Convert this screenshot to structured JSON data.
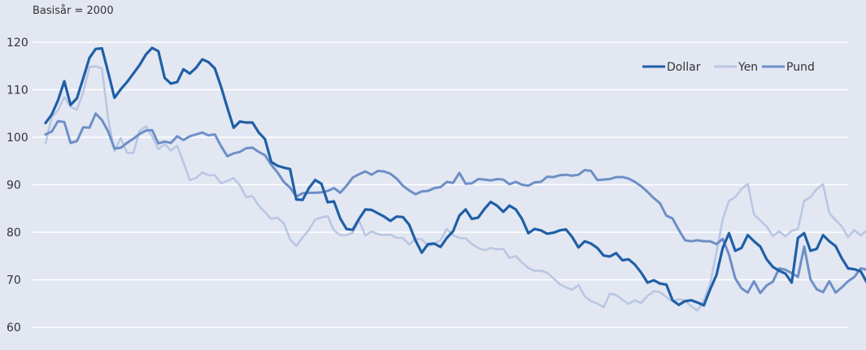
{
  "chart_data": {
    "type": "line",
    "note": "Basisår = 2000",
    "title": "",
    "xlabel": "",
    "ylabel": "",
    "ylim": [
      60,
      120
    ],
    "yticks": [
      60,
      70,
      80,
      90,
      100,
      110,
      120
    ],
    "grid": true,
    "legend_position": "top-right",
    "x_count": 129,
    "colors": {
      "background": "#e3e7f2",
      "grid": "#ffffff",
      "Dollar": "#1f5fa6",
      "Yen": "#b9c7e2",
      "Pund": "#6d8fc6"
    },
    "series": [
      {
        "name": "Dollar",
        "values": [
          103,
          104.8,
          107.8,
          111.8,
          106.8,
          108.2,
          112.4,
          116.7,
          118.6,
          118.7,
          113.6,
          108.3,
          110.1,
          111.6,
          113.4,
          115.2,
          117.4,
          118.8,
          118.1,
          112.5,
          111.3,
          111.6,
          114.3,
          113.4,
          114.6,
          116.4,
          115.8,
          114.5,
          110.6,
          106.2,
          102,
          103.3,
          103.1,
          103.1,
          101,
          99.6,
          94.8,
          94,
          93.6,
          93.3,
          86.9,
          86.8,
          89.3,
          91,
          90.2,
          86.3,
          86.5,
          82.9,
          80.7,
          80.5,
          82.8,
          84.8,
          84.7,
          84,
          83.3,
          82.4,
          83.3,
          83.2,
          81.6,
          78.3,
          75.7,
          77.5,
          77.6,
          76.9,
          78.8,
          80.2,
          83.5,
          84.8,
          82.8,
          83.1,
          84.9,
          86.4,
          85.6,
          84.3,
          85.6,
          84.8,
          82.8,
          79.8,
          80.7,
          80.4,
          79.7,
          79.9,
          80.4,
          80.6,
          79,
          76.8,
          78.1,
          77.6,
          76.7,
          75.1,
          74.9,
          75.6,
          74.1,
          74.3,
          73.2,
          71.5,
          69.4,
          69.9,
          69.2,
          69,
          65.7,
          64.7,
          65.5,
          65.7,
          65.2,
          64.6,
          68,
          71,
          76.7,
          79.8,
          76.1,
          76.7,
          79.4,
          78.1,
          77,
          74.3,
          72.7,
          71.9,
          71.3,
          69.4,
          78.8,
          79.8,
          76.1,
          76.5,
          79.4,
          78.1,
          77.1,
          74.5,
          72.4,
          72.2,
          71.8,
          69.4
        ]
      },
      {
        "name": "Yen",
        "values": [
          98.7,
          104.2,
          105.7,
          108.5,
          106.4,
          105.8,
          109.5,
          114.8,
          114.9,
          114.5,
          103.7,
          97.1,
          99.8,
          96.7,
          96.7,
          101.3,
          102.3,
          100.2,
          97.5,
          98.6,
          97.2,
          98.2,
          94.7,
          91,
          91.4,
          92.6,
          92,
          92,
          90.3,
          90.8,
          91.4,
          89.9,
          87.4,
          87.6,
          85.6,
          84.2,
          82.8,
          83.1,
          81.9,
          78.5,
          77.1,
          78.9,
          80.5,
          82.7,
          83.1,
          83.4,
          80.4,
          79.4,
          79.4,
          79.9,
          82.5,
          79.3,
          80.2,
          79.6,
          79.4,
          79.5,
          78.8,
          78.8,
          77.4,
          78.6,
          78.5,
          77.1,
          77.6,
          78.3,
          80.7,
          79.4,
          78.8,
          78.7,
          77.5,
          76.7,
          76.2,
          76.7,
          76.4,
          76.5,
          74.6,
          75,
          73.6,
          72.5,
          71.9,
          71.9,
          71.5,
          70.3,
          69.1,
          68.4,
          67.9,
          68.9,
          66.5,
          65.5,
          65,
          64.2,
          67.1,
          66.8,
          65.8,
          64.9,
          65.7,
          65.1,
          66.6,
          67.6,
          67.4,
          66.4,
          65.4,
          65.9,
          65.6,
          64.4,
          63.5,
          65.7,
          69.2,
          75.8,
          82.7,
          86.6,
          87.4,
          89.1,
          90.2,
          83.7,
          82.5,
          81.2,
          79.2,
          80.2,
          79.1,
          80.3,
          80.7,
          86.6,
          87.4,
          89.1,
          90.1,
          84,
          82.6,
          81.2,
          79,
          80.5,
          79.3,
          80.4
        ]
      },
      {
        "name": "Pund",
        "values": [
          100.6,
          101.2,
          103.4,
          103.2,
          98.8,
          99.2,
          102.1,
          102,
          105,
          103.6,
          101.2,
          97.6,
          97.8,
          98.8,
          99.7,
          100.7,
          101.4,
          101.5,
          98.7,
          99.1,
          98.8,
          100.2,
          99.4,
          100.2,
          100.6,
          101,
          100.4,
          100.6,
          98.1,
          96,
          96.6,
          96.9,
          97.7,
          97.8,
          96.9,
          96.2,
          94.2,
          92.6,
          90.6,
          89.4,
          87.5,
          88.2,
          88.3,
          88.3,
          88.4,
          88.7,
          89.3,
          88.3,
          89.8,
          91.5,
          92.2,
          92.8,
          92.1,
          92.9,
          92.8,
          92.3,
          91.3,
          89.8,
          88.8,
          88,
          88.6,
          88.7,
          89.3,
          89.5,
          90.6,
          90.4,
          92.5,
          90.2,
          90.3,
          91.2,
          91.1,
          90.9,
          91.2,
          91.1,
          90.1,
          90.6,
          90,
          89.8,
          90.5,
          90.6,
          91.7,
          91.6,
          92,
          92.1,
          91.9,
          92.1,
          93.1,
          92.9,
          91,
          91.1,
          91.2,
          91.6,
          91.6,
          91.3,
          90.6,
          89.7,
          88.5,
          87.2,
          86.1,
          83.5,
          82.9,
          80.5,
          78.3,
          78.1,
          78.3,
          78.1,
          78.1,
          77.5,
          78.6,
          75.3,
          70.3,
          68.2,
          67.3,
          69.7,
          67.2,
          68.8,
          69.6,
          72.4,
          72.1,
          71.4,
          70.6,
          77,
          70.1,
          68,
          67.4,
          69.7,
          67.3,
          68.4,
          69.7,
          70.6,
          72.4,
          72.1,
          69.4
        ]
      }
    ]
  }
}
